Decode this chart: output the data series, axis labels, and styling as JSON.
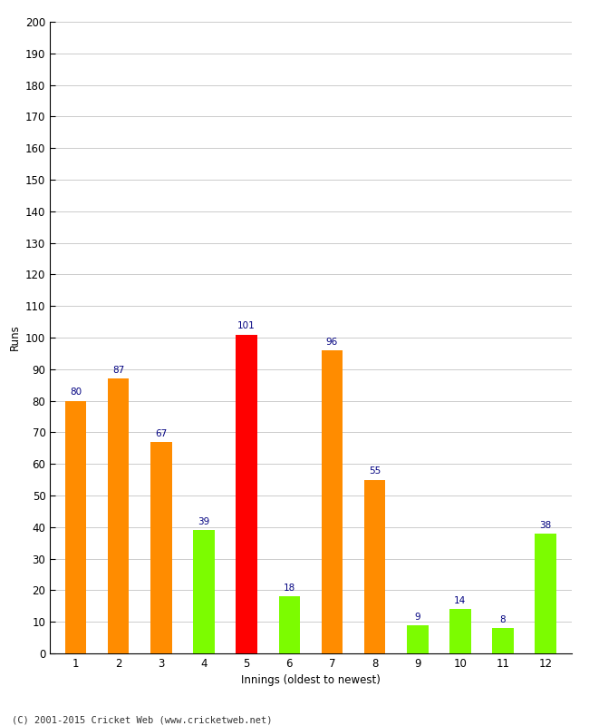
{
  "categories": [
    "1",
    "2",
    "3",
    "4",
    "5",
    "6",
    "7",
    "8",
    "9",
    "10",
    "11",
    "12"
  ],
  "values": [
    80,
    87,
    67,
    39,
    101,
    18,
    96,
    55,
    9,
    14,
    8,
    38
  ],
  "bar_colors": [
    "#ff8c00",
    "#ff8c00",
    "#ff8c00",
    "#7cfc00",
    "#ff0000",
    "#7cfc00",
    "#ff8c00",
    "#ff8c00",
    "#7cfc00",
    "#7cfc00",
    "#7cfc00",
    "#7cfc00"
  ],
  "xlabel": "Innings (oldest to newest)",
  "ylabel": "Runs",
  "ylim": [
    0,
    200
  ],
  "yticks": [
    0,
    10,
    20,
    30,
    40,
    50,
    60,
    70,
    80,
    90,
    100,
    110,
    120,
    130,
    140,
    150,
    160,
    170,
    180,
    190,
    200
  ],
  "label_color": "#000080",
  "label_fontsize": 7.5,
  "background_color": "#ffffff",
  "footer": "(C) 2001-2015 Cricket Web (www.cricketweb.net)",
  "bar_width": 0.5,
  "grid_color": "#cccccc",
  "tick_color": "#000000",
  "spine_color": "#000000"
}
